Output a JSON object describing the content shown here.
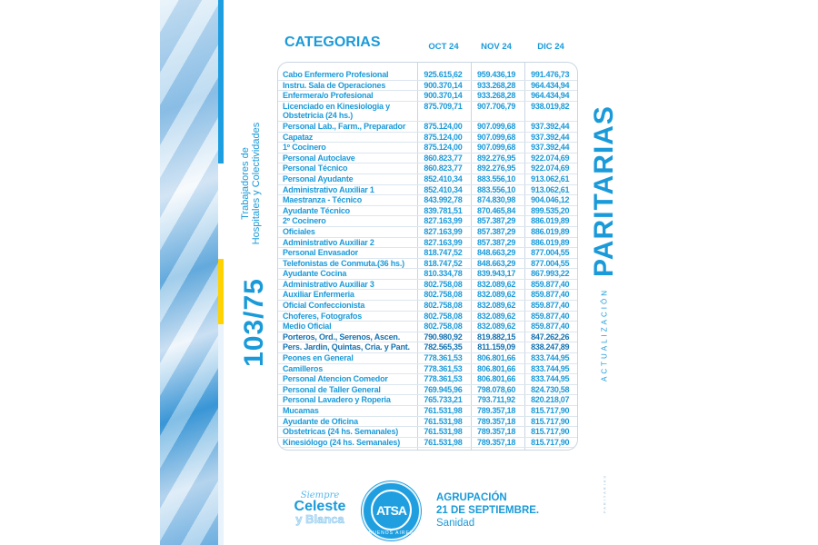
{
  "side": {
    "number": "103/75",
    "subtitle_line1": "Trabajadores de",
    "subtitle_line2": "Hospitales y Colectividades"
  },
  "right": {
    "title": "PARITARIAS",
    "kicker": "ACTUALIZACIÓN",
    "tiny": "PARITARIAS"
  },
  "colors": {
    "accent": "#1a9ad9",
    "yellow": "#ffd200"
  },
  "table": {
    "title": "CATEGORIAS",
    "headers": [
      "OCT 24",
      "NOV 24",
      "DIC 24"
    ],
    "rows": [
      [
        "Cabo Enfermero Profesional",
        "925.615,62",
        "959.436,19",
        "991.476,73"
      ],
      [
        "Instru. Sala de Operaciones",
        "900.370,14",
        "933.268,28",
        "964.434,94"
      ],
      [
        "Enfermera/o Profesional",
        "900.370,14",
        "933.268,28",
        "964.434,94"
      ],
      [
        "Licenciado en Kinesiologia y",
        "875.709,71",
        "907.706,79",
        "938.019,82"
      ],
      [
        "Obstetricia (24 hs.)",
        "",
        "",
        ""
      ],
      [
        "Personal Lab., Farm., Preparador",
        "875.124,00",
        "907.099,68",
        "937.392,44"
      ],
      [
        "Capataz",
        "875.124,00",
        "907.099,68",
        "937.392,44"
      ],
      [
        "1º Cocinero",
        "875.124,00",
        "907.099,68",
        "937.392,44"
      ],
      [
        "Personal Autoclave",
        "860.823,77",
        "892.276,95",
        "922.074,69"
      ],
      [
        "Personal Técnico",
        "860.823,77",
        "892.276,95",
        "922.074,69"
      ],
      [
        "Personal Ayudante",
        "852.410,34",
        "883.556,10",
        "913.062,61"
      ],
      [
        "Administrativo Auxiliar 1",
        "852.410,34",
        "883.556,10",
        "913.062,61"
      ],
      [
        "Maestranza - Técnico",
        "843.992,78",
        "874.830,98",
        "904.046,12"
      ],
      [
        "Ayudante Técnico",
        "839.781,51",
        "870.465,84",
        "899.535,20"
      ],
      [
        "2º Cocinero",
        "827.163,99",
        "857.387,29",
        "886.019,89"
      ],
      [
        "Oficiales",
        "827.163,99",
        "857.387,29",
        "886.019,89"
      ],
      [
        "Administrativo Auxiliar 2",
        "827.163,99",
        "857.387,29",
        "886.019,89"
      ],
      [
        "Personal Envasador",
        "818.747,52",
        "848.663,29",
        "877.004,55"
      ],
      [
        "Telefonistas de Conmuta.(36 hs.)",
        "818.747,52",
        "848.663,29",
        "877.004,55"
      ],
      [
        "Ayudante Cocina",
        "810.334,78",
        "839.943,17",
        "867.993,22"
      ],
      [
        "Administrativo Auxiliar 3",
        "802.758,08",
        "832.089,62",
        "859.877,40"
      ],
      [
        "Auxiliar Enfermeria",
        "802.758,08",
        "832.089,62",
        "859.877,40"
      ],
      [
        "Oficial Confeccionista",
        "802.758,08",
        "832.089,62",
        "859.877,40"
      ],
      [
        "Choferes, Fotografos",
        "802.758,08",
        "832.089,62",
        "859.877,40"
      ],
      [
        "Medio Oficial",
        "802.758,08",
        "832.089,62",
        "859.877,40"
      ],
      [
        "Porteros, Ord., Serenos, Ascen.",
        "790.980,92",
        "819.882,15",
        "847.262,26"
      ],
      [
        "Pers. Jardin, Quintas, Cria. y Pant.",
        "782.565,35",
        "811.159,09",
        "838.247,89"
      ],
      [
        "Peones en General",
        "778.361,53",
        "806.801,66",
        "833.744,95"
      ],
      [
        "Camilleros",
        "778.361,53",
        "806.801,66",
        "833.744,95"
      ],
      [
        "Personal Atencion Comedor",
        "778.361,53",
        "806.801,66",
        "833.744,95"
      ],
      [
        "Personal de Taller General",
        "769.945,96",
        "798.078,60",
        "824.730,58"
      ],
      [
        "Personal Lavadero y Roperia",
        "765.733,21",
        "793.711,92",
        "820.218,07"
      ],
      [
        "Mucamas",
        "761.531,98",
        "789.357,18",
        "815.717,90"
      ],
      [
        "Ayudante de Oficina",
        "761.531,98",
        "789.357,18",
        "815.717,90"
      ],
      [
        "Obstetricas (24 hs. Semanales)",
        "761.531,98",
        "789.357,18",
        "815.717,90"
      ],
      [
        "Kinesiólogo (24 hs. Semanales)",
        "761.531,98",
        "789.357,18",
        "815.717,90"
      ]
    ]
  },
  "footer": {
    "logo_line1": "Siempre",
    "logo_line2": "Celeste",
    "logo_line3": "y Blanca",
    "seal_text": "ATSA",
    "seal_ring": "BUENOS AIRES",
    "org_line1": "AGRUPACIÓN",
    "org_line2": "21 DE SEPTIEMBRE.",
    "org_line3": "Sanidad"
  }
}
